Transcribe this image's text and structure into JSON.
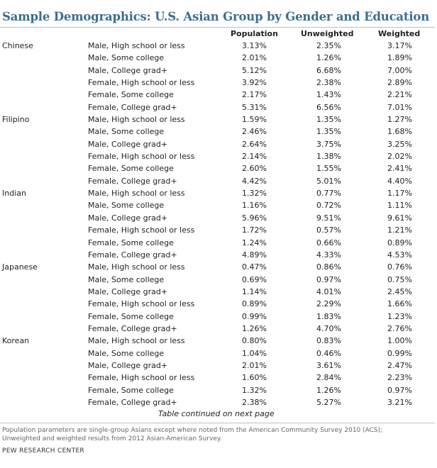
{
  "title": "Sample Demographics: U.S. Asian Group by Gender and Education",
  "columns": {
    "population": "Population",
    "unweighted": "Unweighted",
    "weighted": "Weighted"
  },
  "rows": [
    {
      "group": "Chinese",
      "label": "Male, High school or less",
      "population": "3.13%",
      "unweighted": "2.35%",
      "weighted": "3.17%"
    },
    {
      "group": "",
      "label": "Male, Some college",
      "population": "2.01%",
      "unweighted": "1.26%",
      "weighted": "1.89%"
    },
    {
      "group": "",
      "label": "Male, College grad+",
      "population": "5.12%",
      "unweighted": "6.68%",
      "weighted": "7.00%"
    },
    {
      "group": "",
      "label": "Female, High school or less",
      "population": "3.92%",
      "unweighted": "2.38%",
      "weighted": "2.89%"
    },
    {
      "group": "",
      "label": "Female, Some college",
      "population": "2.17%",
      "unweighted": "1.43%",
      "weighted": "2.21%"
    },
    {
      "group": "",
      "label": "Female, College grad+",
      "population": "5.31%",
      "unweighted": "6.56%",
      "weighted": "7.01%"
    },
    {
      "group": "Filipino",
      "label": "Male, High school or less",
      "population": "1.59%",
      "unweighted": "1.35%",
      "weighted": "1.27%"
    },
    {
      "group": "",
      "label": "Male, Some college",
      "population": "2.46%",
      "unweighted": "1.35%",
      "weighted": "1.68%"
    },
    {
      "group": "",
      "label": "Male, College grad+",
      "population": "2.64%",
      "unweighted": "3.75%",
      "weighted": "3.25%"
    },
    {
      "group": "",
      "label": "Female, High school or less",
      "population": "2.14%",
      "unweighted": "1.38%",
      "weighted": "2.02%"
    },
    {
      "group": "",
      "label": "Female, Some college",
      "population": "2.60%",
      "unweighted": "1.55%",
      "weighted": "2.41%"
    },
    {
      "group": "",
      "label": "Female, College grad+",
      "population": "4.42%",
      "unweighted": "5.01%",
      "weighted": "4.40%"
    },
    {
      "group": "Indian",
      "label": "Male, High school or less",
      "population": "1.32%",
      "unweighted": "0.77%",
      "weighted": "1.17%"
    },
    {
      "group": "",
      "label": "Male, Some college",
      "population": "1.16%",
      "unweighted": "0.72%",
      "weighted": "1.11%"
    },
    {
      "group": "",
      "label": "Male, College grad+",
      "population": "5.96%",
      "unweighted": "9.51%",
      "weighted": "9.61%"
    },
    {
      "group": "",
      "label": "Female, High school or less",
      "population": "1.72%",
      "unweighted": "0.57%",
      "weighted": "1.21%"
    },
    {
      "group": "",
      "label": "Female, Some college",
      "population": "1.24%",
      "unweighted": "0.66%",
      "weighted": "0.89%"
    },
    {
      "group": "",
      "label": "Female, College grad+",
      "population": "4.89%",
      "unweighted": "4.33%",
      "weighted": "4.53%"
    },
    {
      "group": "Japanese",
      "label": "Male, High school or less",
      "population": "0.47%",
      "unweighted": "0.86%",
      "weighted": "0.76%"
    },
    {
      "group": "",
      "label": "Male, Some college",
      "population": "0.69%",
      "unweighted": "0.97%",
      "weighted": "0.75%"
    },
    {
      "group": "",
      "label": "Male, College grad+",
      "population": "1.14%",
      "unweighted": "4.01%",
      "weighted": "2.45%"
    },
    {
      "group": "",
      "label": "Female, High school or less",
      "population": "0.89%",
      "unweighted": "2.29%",
      "weighted": "1.66%"
    },
    {
      "group": "",
      "label": "Female, Some college",
      "population": "0.99%",
      "unweighted": "1.83%",
      "weighted": "1.23%"
    },
    {
      "group": "",
      "label": "Female, College grad+",
      "population": "1.26%",
      "unweighted": "4.70%",
      "weighted": "2.76%"
    },
    {
      "group": "Korean",
      "label": "Male, High school or less",
      "population": "0.80%",
      "unweighted": "0.83%",
      "weighted": "1.00%"
    },
    {
      "group": "",
      "label": "Male, Some college",
      "population": "1.04%",
      "unweighted": "0.46%",
      "weighted": "0.99%"
    },
    {
      "group": "",
      "label": "Male, College grad+",
      "population": "2.01%",
      "unweighted": "3.61%",
      "weighted": "2.47%"
    },
    {
      "group": "",
      "label": "Female, High school or less",
      "population": "1.60%",
      "unweighted": "2.84%",
      "weighted": "2.23%"
    },
    {
      "group": "",
      "label": "Female, Some college",
      "population": "1.32%",
      "unweighted": "1.26%",
      "weighted": "0.97%"
    },
    {
      "group": "",
      "label": "Female, College grad+",
      "population": "2.38%",
      "unweighted": "5.27%",
      "weighted": "3.21%"
    }
  ],
  "continued": "Table continued on next page",
  "note_line1": "Population parameters are single-group Asians except where noted from the American Community Survey 2010 (ACS);",
  "note_line2": "Unweighted and weighted results from 2012 Asian-American Survey.",
  "source": "PEW RESEARCH CENTER",
  "colors": {
    "title": "#3d6e8f",
    "rule": "#bfbfbf"
  }
}
